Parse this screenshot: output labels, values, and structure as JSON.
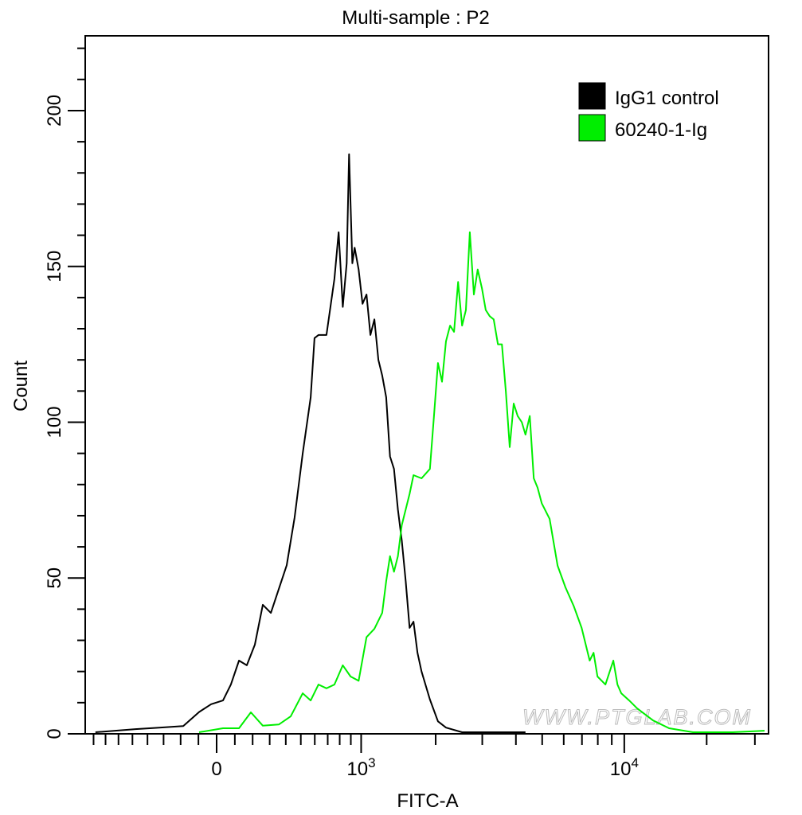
{
  "chart_data": {
    "type": "line",
    "title": "Multi-sample : P2",
    "xlabel": "FITC-A",
    "ylabel": "Count",
    "x_scale": "biexponential",
    "xlim": [
      -876,
      33650
    ],
    "ylim": [
      0,
      224
    ],
    "grid": false,
    "legend_position": "top-right",
    "x_ticks": [
      {
        "value": 0,
        "label": "0",
        "sup": ""
      },
      {
        "value": 1000,
        "label": "10",
        "sup": "3"
      },
      {
        "value": 10000,
        "label": "10",
        "sup": "4"
      }
    ],
    "y_ticks": [
      0,
      50,
      100,
      150,
      200
    ],
    "watermark": "WWW.PTGLAB.COM",
    "series": [
      {
        "name": "IgG1 control",
        "color": "#000000",
        "x": [
          -784,
          -480,
          -326,
          -185,
          -96,
          -30,
          35,
          78,
          123,
          167,
          213,
          259,
          307,
          356,
          406,
          458,
          513,
          570,
          598,
          628,
          690,
          755,
          791,
          827,
          862,
          884,
          914,
          936,
          975,
          1014,
          1055,
          1096,
          1139,
          1184,
          1228,
          1275,
          1322,
          1372,
          1422,
          1474,
          1528,
          1583,
          1640,
          1700,
          1764,
          1900,
          2040,
          2190,
          2520,
          3310,
          4340
        ],
        "y": [
          0.5,
          1.5,
          2,
          2.5,
          7,
          9.5,
          10.7,
          15.8,
          23.5,
          22,
          28.6,
          41.4,
          38.8,
          46.5,
          54.1,
          69.4,
          90,
          108,
          127,
          128,
          128,
          146,
          161,
          137,
          151,
          186,
          151,
          156,
          149,
          138,
          141,
          128,
          133,
          120,
          115,
          108,
          89,
          85,
          72,
          62,
          49,
          34,
          36,
          26,
          20,
          11,
          4,
          2,
          0.5,
          0.5,
          0.5
        ]
      },
      {
        "name": "60240-1-Ig",
        "color": "#00ee00",
        "x": [
          -96,
          35,
          123,
          190,
          259,
          356,
          432,
          513,
          570,
          628,
          690,
          755,
          827,
          898,
          975,
          1055,
          1139,
          1228,
          1275,
          1322,
          1372,
          1422,
          1474,
          1528,
          1583,
          1640,
          1764,
          1900,
          1970,
          2040,
          2115,
          2190,
          2270,
          2350,
          2435,
          2520,
          2605,
          2695,
          2790,
          2885,
          2990,
          3090,
          3200,
          3310,
          3430,
          3550,
          3670,
          3795,
          3925,
          4060,
          4205,
          4340,
          4500,
          4655,
          4810,
          4980,
          5325,
          5695,
          6090,
          6530,
          6980,
          7470,
          7720,
          7980,
          8530,
          9120,
          9440,
          9750,
          10420,
          11140,
          12740,
          14580,
          17830,
          24900,
          32550
        ],
        "y": [
          0.5,
          1.8,
          1.8,
          6.9,
          2.6,
          3,
          5.6,
          13,
          10.7,
          15.8,
          14.6,
          15.8,
          22,
          18.4,
          17,
          31,
          33.7,
          38.8,
          49,
          57,
          52,
          57,
          67,
          72,
          77,
          83,
          82,
          85,
          102,
          119,
          113,
          126,
          131,
          129,
          145,
          131,
          136,
          161,
          141,
          149,
          143,
          136,
          134,
          133,
          125,
          125,
          110,
          92,
          106,
          102,
          100,
          96,
          102,
          82,
          79,
          74,
          69,
          54,
          47,
          41,
          34,
          23.5,
          26,
          18.4,
          15.8,
          23.5,
          15.8,
          13,
          10.7,
          8.2,
          4.3,
          1.8,
          0.5,
          0.5,
          1
        ]
      }
    ]
  }
}
